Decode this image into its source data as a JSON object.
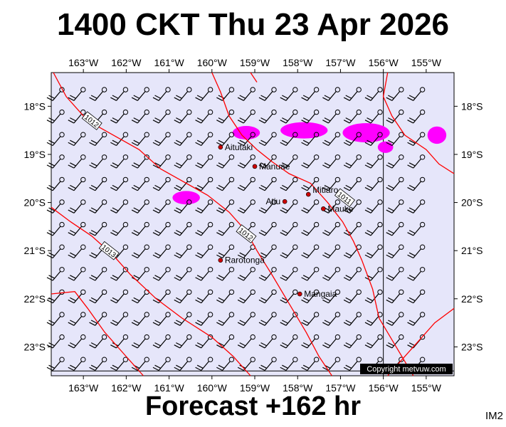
{
  "title": "1400 CKT Thu 23 Apr 2026",
  "footer": "Forecast +162 hr",
  "corner_label": "IM2",
  "copyright": "Copyright metvuw.com",
  "colors": {
    "ocean": "#e6e6fa",
    "isobar": "#ff0000",
    "rain": "#ff00ff",
    "place_dot": "#cc0000",
    "copyright_bg": "#000000"
  },
  "map": {
    "lon_labels": [
      "163°W",
      "162°W",
      "161°W",
      "160°W",
      "159°W",
      "158°W",
      "157°W",
      "156°W",
      "155°W"
    ],
    "lat_labels": [
      "18°S",
      "19°S",
      "20°S",
      "21°S",
      "22°S",
      "23°S"
    ],
    "lon_range": [
      -163.75,
      -154.35
    ],
    "lat_range": [
      -23.6,
      -17.3
    ],
    "gridlines": [
      {
        "lon": -156.0
      },
      {
        "lat": -23.5
      }
    ],
    "places": [
      {
        "name": "Aitutaki",
        "lat": -18.85,
        "lon": -159.8
      },
      {
        "name": "Manuae",
        "lat": -19.25,
        "lon": -159.0
      },
      {
        "name": "Atiu",
        "lat": -19.98,
        "lon": -158.3
      },
      {
        "name": "Mitiaro",
        "lat": -19.83,
        "lon": -157.75
      },
      {
        "name": "Mauke",
        "lat": -20.13,
        "lon": -157.4
      },
      {
        "name": "Rarotonga",
        "lat": -21.2,
        "lon": -159.8
      },
      {
        "name": "Mangaia",
        "lat": -21.9,
        "lon": -157.95
      }
    ],
    "isobars": [
      {
        "label": "1012",
        "label_at": {
          "lat": -18.3,
          "lon": -162.8
        },
        "points": [
          [
            -17.3,
            -163.7
          ],
          [
            -17.8,
            -163.4
          ],
          [
            -18.3,
            -162.9
          ],
          [
            -18.6,
            -162.3
          ],
          [
            -18.9,
            -161.7
          ],
          [
            -19.3,
            -161.2
          ],
          [
            -19.6,
            -160.6
          ],
          [
            -19.85,
            -160.1
          ],
          [
            -20.2,
            -159.6
          ],
          [
            -20.6,
            -159.2
          ],
          [
            -21.0,
            -158.95
          ],
          [
            -21.5,
            -158.6
          ],
          [
            -22.1,
            -158.2
          ],
          [
            -22.7,
            -157.8
          ],
          [
            -23.2,
            -157.5
          ],
          [
            -23.6,
            -157.2
          ]
        ]
      },
      {
        "label": "1012",
        "label_at": {
          "lat": -20.65,
          "lon": -159.2
        },
        "points": [
          [
            -17.3,
            -160.0
          ],
          [
            -17.7,
            -159.8
          ],
          [
            -18.2,
            -159.6
          ],
          [
            -18.6,
            -159.3
          ],
          [
            -18.9,
            -158.95
          ],
          [
            -19.15,
            -158.6
          ],
          [
            -19.4,
            -158.2
          ],
          [
            -19.6,
            -157.7
          ],
          [
            -20.0,
            -157.3
          ],
          [
            -20.4,
            -156.95
          ],
          [
            -20.8,
            -156.7
          ],
          [
            -21.2,
            -156.5
          ],
          [
            -21.8,
            -156.25
          ],
          [
            -22.4,
            -156.1
          ],
          [
            -23.0,
            -155.7
          ],
          [
            -23.6,
            -155.3
          ]
        ]
      },
      {
        "label": "1011",
        "label_at": {
          "lat": -19.9,
          "lon": -156.9
        },
        "points": [
          [
            -17.3,
            -155.9
          ],
          [
            -17.8,
            -156.0
          ],
          [
            -18.2,
            -155.8
          ],
          [
            -18.6,
            -155.5
          ],
          [
            -18.9,
            -155.0
          ],
          [
            -19.2,
            -154.7
          ],
          [
            -19.4,
            -154.35
          ]
        ]
      },
      {
        "label": "1013",
        "label_at": {
          "lat": -21.0,
          "lon": -162.4
        },
        "points": [
          [
            -20.1,
            -163.75
          ],
          [
            -20.4,
            -163.3
          ],
          [
            -20.7,
            -162.8
          ],
          [
            -21.1,
            -162.3
          ],
          [
            -21.5,
            -161.9
          ],
          [
            -22.0,
            -161.3
          ],
          [
            -22.4,
            -160.7
          ],
          [
            -22.8,
            -160.0
          ],
          [
            -23.2,
            -159.5
          ],
          [
            -23.6,
            -159.1
          ]
        ]
      },
      {
        "label": "",
        "label_at": null,
        "points": [
          [
            -21.9,
            -163.75
          ],
          [
            -21.85,
            -163.2
          ],
          [
            -22.2,
            -162.9
          ],
          [
            -22.7,
            -162.5
          ],
          [
            -23.2,
            -162.0
          ],
          [
            -23.6,
            -161.6
          ]
        ]
      },
      {
        "label": "",
        "label_at": null,
        "points": [
          [
            -22.2,
            -154.35
          ],
          [
            -22.5,
            -154.8
          ],
          [
            -22.9,
            -155.2
          ],
          [
            -23.3,
            -155.6
          ],
          [
            -23.6,
            -155.9
          ]
        ]
      },
      {
        "label": "",
        "label_at": null,
        "points": [
          [
            -17.3,
            -159.1
          ],
          [
            -17.5,
            -158.95
          ]
        ]
      }
    ],
    "rain_patches": [
      {
        "lat": -18.55,
        "lon": -159.2,
        "dlat": 0.14,
        "dlon": 0.32
      },
      {
        "lat": -18.5,
        "lon": -157.85,
        "dlat": 0.17,
        "dlon": 0.55
      },
      {
        "lat": -18.55,
        "lon": -156.4,
        "dlat": 0.2,
        "dlon": 0.55
      },
      {
        "lat": -18.85,
        "lon": -155.95,
        "dlat": 0.12,
        "dlon": 0.18
      },
      {
        "lat": -18.6,
        "lon": -154.75,
        "dlat": 0.18,
        "dlon": 0.22
      },
      {
        "lat": -19.9,
        "lon": -160.6,
        "dlat": 0.14,
        "dlon": 0.32
      }
    ],
    "wind_direction_deg": 130,
    "wind_barb_full": 2
  }
}
